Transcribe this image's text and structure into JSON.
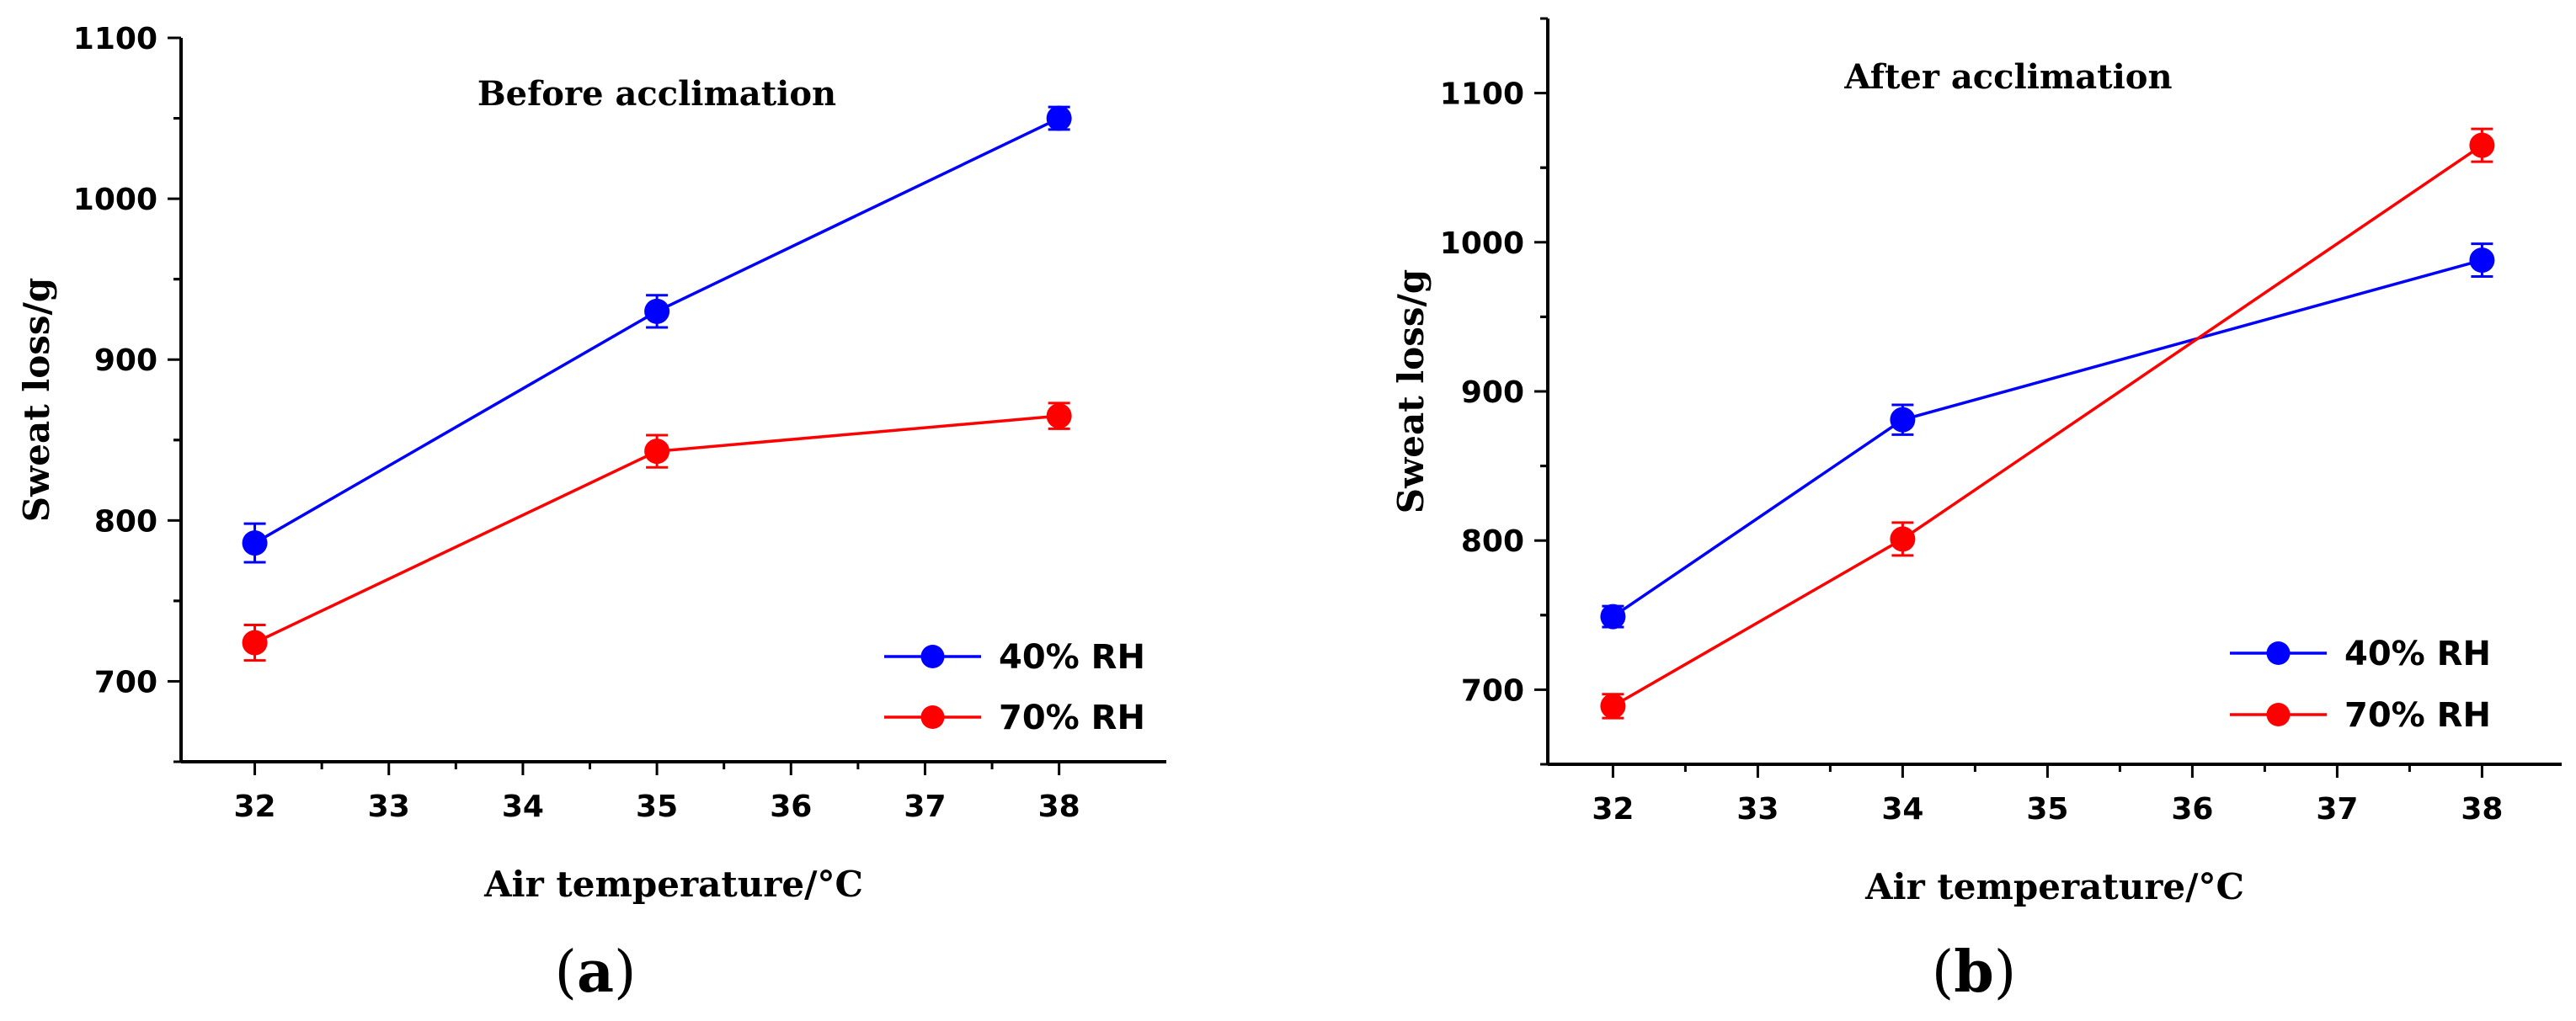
{
  "chart_data": [
    {
      "panel": "a",
      "type": "line",
      "title": "Before acclimation",
      "xlabel": "Air temperature/°C",
      "ylabel": "Sweat loss/g",
      "xlim": [
        31.45,
        38.8
      ],
      "ylim": [
        650,
        1100
      ],
      "xticks": [
        32,
        33,
        34,
        35,
        36,
        37,
        38
      ],
      "yticks": [
        700,
        800,
        900,
        1000,
        1100
      ],
      "legend_position": "bottom-right",
      "series": [
        {
          "name": "40% RH",
          "color": "#0000ff",
          "x": [
            32,
            35,
            38
          ],
          "y": [
            786,
            930,
            1050
          ],
          "err": [
            12,
            10,
            7
          ]
        },
        {
          "name": "70% RH",
          "color": "#ff0000",
          "x": [
            32,
            35,
            38
          ],
          "y": [
            724,
            843,
            865
          ],
          "err": [
            11,
            10,
            8
          ]
        }
      ]
    },
    {
      "panel": "b",
      "type": "line",
      "title": "After acclimation",
      "xlabel": "Air temperature/°C",
      "ylabel": "Sweat loss/g",
      "xlim": [
        31.55,
        38.55
      ],
      "ylim": [
        650,
        1150
      ],
      "xticks": [
        32,
        33,
        34,
        35,
        36,
        37,
        38
      ],
      "yticks": [
        700,
        800,
        900,
        1000,
        1100
      ],
      "legend_position": "bottom-right",
      "series": [
        {
          "name": "40% RH",
          "color": "#0000ff",
          "x": [
            32,
            34,
            38
          ],
          "y": [
            749,
            881,
            988
          ],
          "err": [
            7,
            10,
            11
          ]
        },
        {
          "name": "70% RH",
          "color": "#ff0000",
          "x": [
            32,
            34,
            38
          ],
          "y": [
            689,
            801,
            1065
          ],
          "err": [
            8,
            11,
            11
          ]
        }
      ]
    }
  ],
  "panel_labels": {
    "a": {
      "open": "(",
      "letter": "a",
      "close": ")"
    },
    "b": {
      "open": "(",
      "letter": "b",
      "close": ")"
    }
  }
}
